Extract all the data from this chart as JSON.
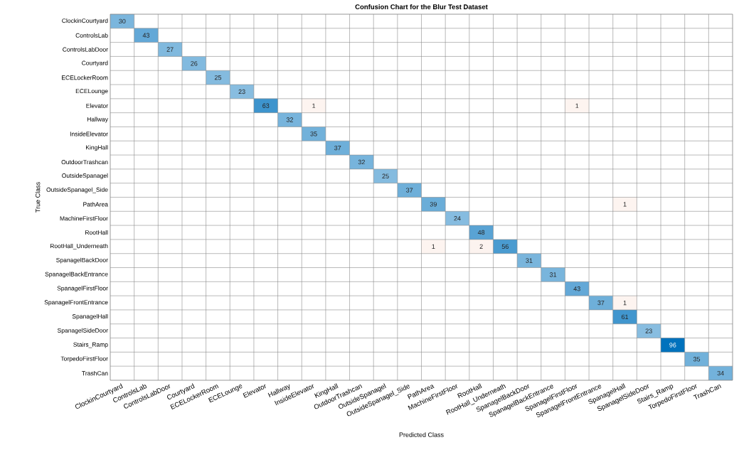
{
  "chart_data": {
    "type": "heatmap",
    "title": "Confusion Chart for the Blur Test Dataset",
    "xlabel": "Predicted Class",
    "data_labels": true,
    "ylabel": "True Class",
    "categories": [
      "ClockinCourtyard",
      "ControlsLab",
      "ControlsLabDoor",
      "Courtyard",
      "ECELockerRoom",
      "ECELounge",
      "Elevator",
      "Hallway",
      "InsideElevator",
      "KingHall",
      "OutdoorTrashcan",
      "OutsideSpanagel",
      "OutsideSpanagel_Side",
      "PathArea",
      "MachineFirstFloor",
      "RootHall",
      "RootHall_Underneath",
      "SpanagelBackDoor",
      "SpanagelBackEntrance",
      "SpanagelFirstFloor",
      "SpanagelFrontEntrance",
      "SpanagelHall",
      "SpanagelSideDoor",
      "Stairs_Ramp",
      "TorpedoFirstFloor",
      "TrashCan"
    ],
    "y_categories": [
      "ClockinCourtyard",
      "ControlsLab",
      "ControlsLabDoor",
      "Courtyard",
      "ECELockerRoom",
      "ECELounge",
      "Elevator",
      "Hallway",
      "InsideElevator",
      "KingHall",
      "OutdoorTrashcan",
      "OutsideSpanagel",
      "OutsideSpanagel_Side",
      "PathArea",
      "MachineFirstFloor",
      "RootHall",
      "RootHall_Underneath",
      "SpanagelBackDoor",
      "SpanagelBackEntrance",
      "SpanagelFirstFloor",
      "SpanagelFrontEntrance",
      "SpanagelHall",
      "SpanagelSideDoor",
      "Stairs_Ramp",
      "TorpedoFirstFloor",
      "TrashCan"
    ],
    "cells": [
      [
        30,
        null,
        null,
        null,
        null,
        null,
        null,
        null,
        null,
        null,
        null,
        null,
        null,
        null,
        null,
        null,
        null,
        null,
        null,
        null,
        null,
        null,
        null,
        null,
        null,
        null
      ],
      [
        null,
        43,
        null,
        null,
        null,
        null,
        null,
        null,
        null,
        null,
        null,
        null,
        null,
        null,
        null,
        null,
        null,
        null,
        null,
        null,
        null,
        null,
        null,
        null,
        null,
        null
      ],
      [
        null,
        null,
        27,
        null,
        null,
        null,
        null,
        null,
        null,
        null,
        null,
        null,
        null,
        null,
        null,
        null,
        null,
        null,
        null,
        null,
        null,
        null,
        null,
        null,
        null,
        null
      ],
      [
        null,
        null,
        null,
        26,
        null,
        null,
        null,
        null,
        null,
        null,
        null,
        null,
        null,
        null,
        null,
        null,
        null,
        null,
        null,
        null,
        null,
        null,
        null,
        null,
        null,
        null
      ],
      [
        null,
        null,
        null,
        null,
        25,
        null,
        null,
        null,
        null,
        null,
        null,
        null,
        null,
        null,
        null,
        null,
        null,
        null,
        null,
        null,
        null,
        null,
        null,
        null,
        null,
        null
      ],
      [
        null,
        null,
        null,
        null,
        null,
        23,
        null,
        null,
        null,
        null,
        null,
        null,
        null,
        null,
        null,
        null,
        null,
        null,
        null,
        null,
        null,
        null,
        null,
        null,
        null,
        null
      ],
      [
        null,
        null,
        null,
        null,
        null,
        null,
        63,
        null,
        1,
        null,
        null,
        null,
        null,
        null,
        null,
        null,
        null,
        null,
        null,
        1,
        null,
        null,
        null,
        null,
        null,
        null
      ],
      [
        null,
        null,
        null,
        null,
        null,
        null,
        null,
        32,
        null,
        null,
        null,
        null,
        null,
        null,
        null,
        null,
        null,
        null,
        null,
        null,
        null,
        null,
        null,
        null,
        null,
        null
      ],
      [
        null,
        null,
        null,
        null,
        null,
        null,
        null,
        null,
        35,
        null,
        null,
        null,
        null,
        null,
        null,
        null,
        null,
        null,
        null,
        null,
        null,
        null,
        null,
        null,
        null,
        null
      ],
      [
        null,
        null,
        null,
        null,
        null,
        null,
        null,
        null,
        null,
        37,
        null,
        null,
        null,
        null,
        null,
        null,
        null,
        null,
        null,
        null,
        null,
        null,
        null,
        null,
        null,
        null
      ],
      [
        null,
        null,
        null,
        null,
        null,
        null,
        null,
        null,
        null,
        null,
        32,
        null,
        null,
        null,
        null,
        null,
        null,
        null,
        null,
        null,
        null,
        null,
        null,
        null,
        null,
        null
      ],
      [
        null,
        null,
        null,
        null,
        null,
        null,
        null,
        null,
        null,
        null,
        null,
        25,
        null,
        null,
        null,
        null,
        null,
        null,
        null,
        null,
        null,
        null,
        null,
        null,
        null,
        null
      ],
      [
        null,
        null,
        null,
        null,
        null,
        null,
        null,
        null,
        null,
        null,
        null,
        null,
        37,
        null,
        null,
        null,
        null,
        null,
        null,
        null,
        null,
        null,
        null,
        null,
        null,
        null
      ],
      [
        null,
        null,
        null,
        null,
        null,
        null,
        null,
        null,
        null,
        null,
        null,
        null,
        null,
        39,
        null,
        null,
        null,
        null,
        null,
        null,
        null,
        1,
        null,
        null,
        null,
        null
      ],
      [
        null,
        null,
        null,
        null,
        null,
        null,
        null,
        null,
        null,
        null,
        null,
        null,
        null,
        null,
        24,
        null,
        null,
        null,
        null,
        null,
        null,
        null,
        null,
        null,
        null,
        null
      ],
      [
        null,
        null,
        null,
        null,
        null,
        null,
        null,
        null,
        null,
        null,
        null,
        null,
        null,
        null,
        null,
        48,
        null,
        null,
        null,
        null,
        null,
        null,
        null,
        null,
        null,
        null
      ],
      [
        null,
        null,
        null,
        null,
        null,
        null,
        null,
        null,
        null,
        null,
        null,
        null,
        null,
        1,
        null,
        2,
        56,
        null,
        null,
        null,
        null,
        null,
        null,
        null,
        null,
        null
      ],
      [
        null,
        null,
        null,
        null,
        null,
        null,
        null,
        null,
        null,
        null,
        null,
        null,
        null,
        null,
        null,
        null,
        null,
        31,
        null,
        null,
        null,
        null,
        null,
        null,
        null,
        null
      ],
      [
        null,
        null,
        null,
        null,
        null,
        null,
        null,
        null,
        null,
        null,
        null,
        null,
        null,
        null,
        null,
        null,
        null,
        null,
        31,
        null,
        null,
        null,
        null,
        null,
        null,
        null
      ],
      [
        null,
        null,
        null,
        null,
        null,
        null,
        null,
        null,
        null,
        null,
        null,
        null,
        null,
        null,
        null,
        null,
        null,
        null,
        null,
        43,
        null,
        null,
        null,
        null,
        null,
        null
      ],
      [
        null,
        null,
        null,
        null,
        null,
        null,
        null,
        null,
        null,
        null,
        null,
        null,
        null,
        null,
        null,
        null,
        null,
        null,
        null,
        null,
        37,
        1,
        null,
        null,
        null,
        null
      ],
      [
        null,
        null,
        null,
        null,
        null,
        null,
        null,
        null,
        null,
        null,
        null,
        null,
        null,
        null,
        null,
        null,
        null,
        null,
        null,
        null,
        null,
        61,
        null,
        null,
        null,
        null
      ],
      [
        null,
        null,
        null,
        null,
        null,
        null,
        null,
        null,
        null,
        null,
        null,
        null,
        null,
        null,
        null,
        null,
        null,
        null,
        null,
        null,
        null,
        null,
        23,
        null,
        null,
        null
      ],
      [
        null,
        null,
        null,
        null,
        null,
        null,
        null,
        null,
        null,
        null,
        null,
        null,
        null,
        null,
        null,
        null,
        null,
        null,
        null,
        null,
        null,
        null,
        null,
        96,
        null,
        null
      ],
      [
        null,
        null,
        null,
        null,
        null,
        null,
        null,
        null,
        null,
        null,
        null,
        null,
        null,
        null,
        null,
        null,
        null,
        null,
        null,
        null,
        null,
        null,
        null,
        null,
        35,
        null
      ],
      [
        null,
        null,
        null,
        null,
        null,
        null,
        null,
        null,
        null,
        null,
        null,
        null,
        null,
        null,
        null,
        null,
        null,
        null,
        null,
        null,
        null,
        null,
        null,
        null,
        null,
        34
      ]
    ]
  }
}
